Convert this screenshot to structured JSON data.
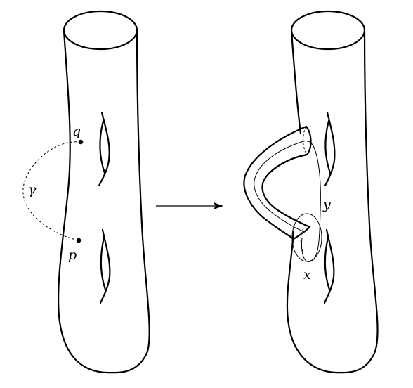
{
  "diagram": {
    "left_surface": {
      "point_q": "q",
      "point_p": "p",
      "path_label": "γ"
    },
    "right_surface": {
      "curve_y": "y",
      "curve_x": "x"
    },
    "arrow": "→"
  }
}
